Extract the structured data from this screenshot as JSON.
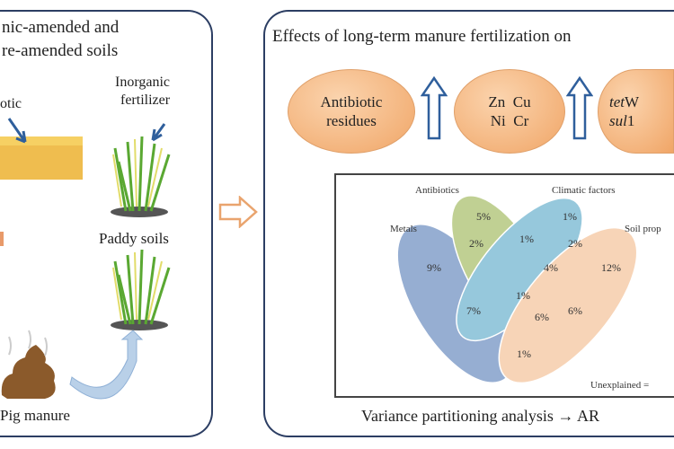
{
  "left_panel": {
    "title_line1": "nic-amended and",
    "title_line2": "re-amended soils",
    "antibiotic_label": "otic",
    "inorganic_label_line1": "Inorganic",
    "inorganic_label_line2": "fertilizer",
    "paddy_label": "Paddy soils",
    "manure_label": "Pig manure"
  },
  "right_panel": {
    "title": "Effects of long-term manure fertilization on",
    "ovals": [
      {
        "line1": "Antibiotic",
        "line2": "residues"
      },
      {
        "line1": "Zn  Cu",
        "line2": "Ni  Cr"
      },
      {
        "line1_italic": "tet",
        "line1_rest": "W",
        "line2_italic": "sul",
        "line2_rest": "1"
      }
    ],
    "venn": {
      "sets": [
        {
          "name": "Metals",
          "color": "#6f8fc2"
        },
        {
          "name": "Antibiotics",
          "color": "#a9bf6a"
        },
        {
          "name": "Climatic factors",
          "color": "#6fb3cf"
        },
        {
          "name": "Soil prop",
          "color": "#f5c49c"
        }
      ],
      "values": {
        "metals_only": "9%",
        "antibiotics_only": "5%",
        "climatic_only": "1%",
        "soil_only": "12%",
        "metals_antibiotics": "2%",
        "antibiotics_climatic": "1%",
        "climatic_soil": "2%",
        "center_upper": "4%",
        "center": "1%",
        "metals_climatic": "7%",
        "antibiotics_soil_a": "6%",
        "antibiotics_soil_b": "6%",
        "metals_soil": "1%"
      },
      "unexplained": "Unexplained ="
    },
    "footer": "Variance partitioning analysis",
    "footer_suffix": "AR"
  }
}
